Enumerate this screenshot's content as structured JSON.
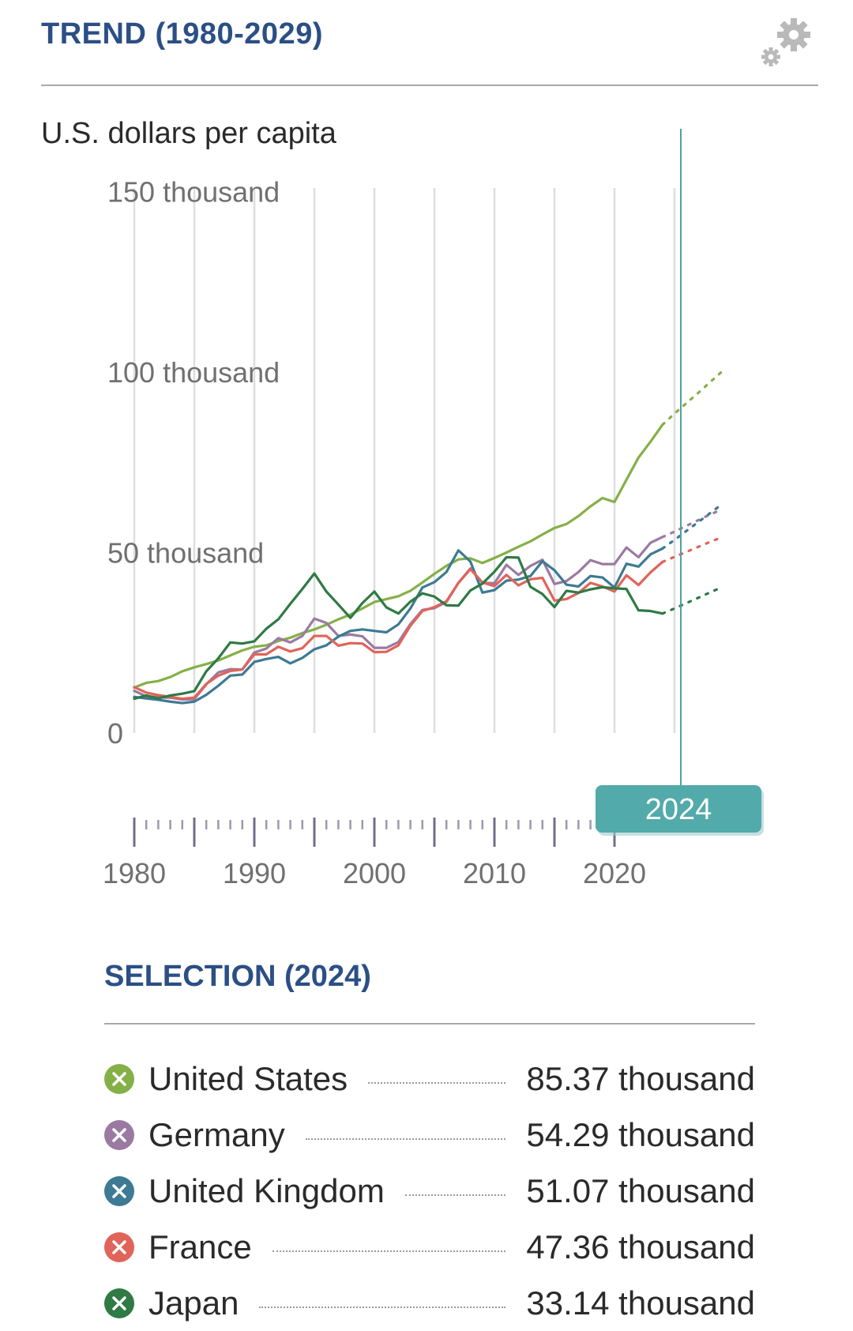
{
  "header": {
    "title": "TREND (1980-2029)",
    "settings_icon": "gears-icon"
  },
  "selection": {
    "title": "SELECTION (2024)",
    "items": [
      {
        "name": "United States",
        "value": "85.37 thousand",
        "color": "#85b048",
        "icon": "close-circle-icon"
      },
      {
        "name": "Germany",
        "value": "54.29 thousand",
        "color": "#9b7aa1",
        "icon": "close-circle-icon"
      },
      {
        "name": "United Kingdom",
        "value": "51.07 thousand",
        "color": "#3d7a93",
        "icon": "close-circle-icon"
      },
      {
        "name": "France",
        "value": "47.36 thousand",
        "color": "#e0645a",
        "icon": "close-circle-icon"
      },
      {
        "name": "Japan",
        "value": "33.14 thousand",
        "color": "#2f7a45",
        "icon": "close-circle-icon"
      }
    ]
  },
  "chart_data": {
    "type": "line",
    "ylabel": "U.S. dollars per capita",
    "ylim": [
      0,
      150
    ],
    "yticks": [
      {
        "value": 0,
        "label": "0"
      },
      {
        "value": 50,
        "label": "50 thousand"
      },
      {
        "value": 100,
        "label": "100 thousand"
      },
      {
        "value": 150,
        "label": "150 thousand"
      }
    ],
    "xlim": [
      1980,
      2029
    ],
    "xticks": [
      {
        "value": 1980,
        "label": "1980"
      },
      {
        "value": 1990,
        "label": "1990"
      },
      {
        "value": 2000,
        "label": "2000"
      },
      {
        "value": 2010,
        "label": "2010"
      },
      {
        "value": 2020,
        "label": "2020"
      }
    ],
    "selected_year": "2024",
    "forecast_from": 2024,
    "grid": true,
    "series": [
      {
        "name": "United States",
        "color": "#85b048",
        "x": [
          1980,
          1981,
          1982,
          1983,
          1984,
          1985,
          1986,
          1987,
          1988,
          1989,
          1990,
          1991,
          1992,
          1993,
          1994,
          1995,
          1996,
          1997,
          1998,
          1999,
          2000,
          2001,
          2002,
          2003,
          2004,
          2005,
          2006,
          2007,
          2008,
          2009,
          2010,
          2011,
          2012,
          2013,
          2014,
          2015,
          2016,
          2017,
          2018,
          2019,
          2020,
          2021,
          2022,
          2023,
          2024,
          2025,
          2026,
          2027,
          2028,
          2029
        ],
        "values": [
          12.6,
          13.9,
          14.4,
          15.5,
          17.1,
          18.2,
          19.1,
          20.1,
          21.5,
          22.9,
          23.9,
          24.3,
          25.5,
          26.4,
          27.7,
          28.7,
          30.0,
          31.5,
          32.8,
          34.5,
          36.3,
          37.1,
          37.9,
          39.4,
          41.7,
          44.1,
          46.3,
          48.1,
          48.4,
          47.1,
          48.5,
          50.0,
          51.6,
          53.1,
          55.0,
          56.8,
          57.9,
          60.1,
          62.8,
          65.1,
          64.0,
          70.2,
          76.3,
          80.7,
          85.4,
          88.5,
          91.4,
          94.3,
          97.3,
          100.3
        ]
      },
      {
        "name": "Germany",
        "color": "#9b7aa1",
        "x": [
          1980,
          1981,
          1982,
          1983,
          1984,
          1985,
          1986,
          1987,
          1988,
          1989,
          1990,
          1991,
          1992,
          1993,
          1994,
          1995,
          1996,
          1997,
          1998,
          1999,
          2000,
          2001,
          2002,
          2003,
          2004,
          2005,
          2006,
          2007,
          2008,
          2009,
          2010,
          2011,
          2012,
          2013,
          2014,
          2015,
          2016,
          2017,
          2018,
          2019,
          2020,
          2021,
          2022,
          2023,
          2024,
          2025,
          2026,
          2027,
          2028,
          2029
        ],
        "values": [
          11.7,
          10.2,
          9.9,
          9.8,
          9.3,
          9.4,
          13.5,
          16.8,
          17.7,
          17.6,
          22.3,
          23.4,
          26.3,
          25.1,
          26.9,
          31.7,
          30.5,
          26.9,
          27.3,
          26.8,
          23.6,
          23.6,
          25.2,
          30.2,
          34.1,
          34.6,
          36.3,
          41.6,
          45.6,
          41.6,
          41.5,
          46.6,
          43.8,
          46.3,
          48.0,
          41.3,
          42.1,
          44.6,
          47.9,
          46.8,
          46.8,
          51.4,
          48.7,
          52.7,
          54.3,
          55.8,
          57.4,
          59.0,
          60.6,
          62.0
        ]
      },
      {
        "name": "United Kingdom",
        "color": "#3d7a93",
        "x": [
          1980,
          1981,
          1982,
          1983,
          1984,
          1985,
          1986,
          1987,
          1988,
          1989,
          1990,
          1991,
          1992,
          1993,
          1994,
          1995,
          1996,
          1997,
          1998,
          1999,
          2000,
          2001,
          2002,
          2003,
          2004,
          2005,
          2006,
          2007,
          2008,
          2009,
          2010,
          2011,
          2012,
          2013,
          2014,
          2015,
          2016,
          2017,
          2018,
          2019,
          2020,
          2021,
          2022,
          2023,
          2024,
          2025,
          2026,
          2027,
          2028,
          2029
        ],
        "values": [
          10.0,
          9.6,
          9.2,
          8.7,
          8.3,
          8.7,
          10.6,
          13.1,
          15.9,
          16.2,
          19.7,
          20.5,
          21.1,
          19.3,
          20.8,
          23.2,
          24.3,
          26.7,
          28.3,
          28.7,
          28.3,
          27.9,
          30.1,
          34.5,
          40.3,
          41.8,
          44.6,
          50.6,
          47.5,
          38.9,
          39.6,
          42.2,
          42.5,
          43.5,
          47.6,
          45.1,
          41.1,
          40.6,
          43.5,
          43.1,
          40.3,
          46.9,
          46.1,
          49.5,
          51.1,
          53.5,
          56.0,
          58.5,
          61.0,
          63.5
        ]
      },
      {
        "name": "France",
        "color": "#e0645a",
        "x": [
          1980,
          1981,
          1982,
          1983,
          1984,
          1985,
          1986,
          1987,
          1988,
          1989,
          1990,
          1991,
          1992,
          1993,
          1994,
          1995,
          1996,
          1997,
          1998,
          1999,
          2000,
          2001,
          2002,
          2003,
          2004,
          2005,
          2006,
          2007,
          2008,
          2009,
          2010,
          2011,
          2012,
          2013,
          2014,
          2015,
          2016,
          2017,
          2018,
          2019,
          2020,
          2021,
          2022,
          2023,
          2024,
          2025,
          2026,
          2027,
          2028,
          2029
        ],
        "values": [
          12.7,
          11.2,
          10.5,
          10.0,
          9.5,
          9.8,
          13.6,
          15.9,
          17.2,
          17.6,
          21.8,
          21.8,
          23.9,
          22.6,
          23.5,
          26.9,
          26.9,
          24.2,
          24.9,
          24.8,
          22.4,
          22.5,
          24.3,
          29.7,
          33.8,
          34.9,
          36.5,
          41.6,
          45.4,
          41.7,
          40.7,
          43.8,
          40.9,
          42.6,
          43.0,
          36.7,
          37.1,
          38.8,
          41.6,
          40.6,
          39.2,
          43.7,
          41.0,
          44.5,
          47.4,
          48.8,
          50.2,
          51.6,
          53.0,
          54.3
        ]
      },
      {
        "name": "Japan",
        "color": "#2f7a45",
        "x": [
          1980,
          1981,
          1982,
          1983,
          1984,
          1985,
          1986,
          1987,
          1988,
          1989,
          1990,
          1991,
          1992,
          1993,
          1994,
          1995,
          1996,
          1997,
          1998,
          1999,
          2000,
          2001,
          2002,
          2003,
          2004,
          2005,
          2006,
          2007,
          2008,
          2009,
          2010,
          2011,
          2012,
          2013,
          2014,
          2015,
          2016,
          2017,
          2018,
          2019,
          2020,
          2021,
          2022,
          2023,
          2024,
          2025,
          2026,
          2027,
          2028,
          2029
        ],
        "values": [
          9.5,
          10.4,
          9.6,
          10.4,
          10.9,
          11.6,
          17.1,
          20.7,
          25.1,
          24.8,
          25.4,
          28.9,
          31.5,
          35.8,
          39.9,
          44.2,
          39.2,
          35.6,
          31.9,
          36.0,
          39.2,
          34.8,
          33.1,
          36.4,
          38.7,
          37.8,
          35.4,
          35.3,
          39.5,
          41.4,
          44.7,
          48.7,
          48.6,
          40.5,
          38.5,
          34.9,
          39.4,
          38.9,
          39.8,
          40.4,
          40.1,
          39.9,
          34.0,
          33.8,
          33.1,
          34.5,
          36.0,
          37.5,
          39.0,
          40.5
        ]
      }
    ]
  }
}
